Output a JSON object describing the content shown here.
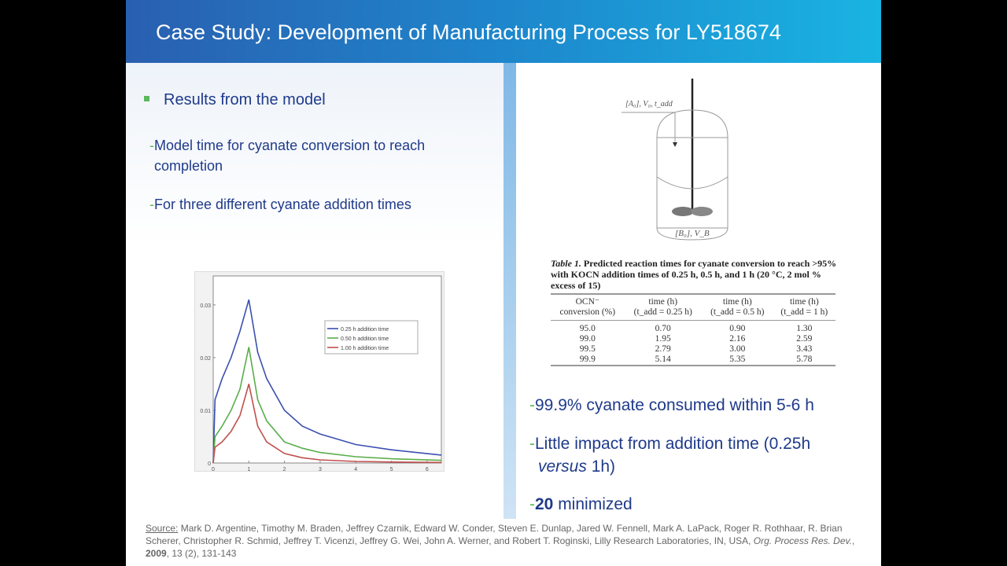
{
  "title": "Case Study: Development of Manufacturing Process for LY518674",
  "left": {
    "bullet": "Results from the model",
    "subs": [
      "Model time for cyanate conversion to reach completion",
      "For three different cyanate addition times"
    ]
  },
  "right": {
    "diagram": {
      "feed_label": "[A₀], V₀, t_add",
      "bottom_label": "[B₀], V_B"
    },
    "table": {
      "caption_bold": "Table 1.",
      "caption": "Predicted reaction times for cyanate conversion to reach >95% with KOCN addition times of 0.25 h, 0.5 h, and 1 h (20 °C, 2 mol % excess of 15)",
      "headers": [
        [
          "OCN⁻",
          "conversion (%)"
        ],
        [
          "time (h)",
          "(t_add = 0.25 h)"
        ],
        [
          "time (h)",
          "(t_add = 0.5 h)"
        ],
        [
          "time (h)",
          "(t_add = 1 h)"
        ]
      ],
      "rows": [
        [
          "95.0",
          "0.70",
          "0.90",
          "1.30"
        ],
        [
          "99.0",
          "1.95",
          "2.16",
          "2.59"
        ],
        [
          "99.5",
          "2.79",
          "3.00",
          "3.43"
        ],
        [
          "99.9",
          "5.14",
          "5.35",
          "5.78"
        ]
      ]
    },
    "subs": {
      "s1": "99.9% cyanate consumed within 5-6 h",
      "s2a": "Little impact from addition time (0.25h",
      "s2b_italic": "versus",
      "s2c": " 1h)",
      "s3_bold": "20",
      "s3": " minimized"
    }
  },
  "source": {
    "label": "Source:",
    "authors": " Mark D. Argentine, Timothy M. Braden, Jeffrey Czarnik, Edward W. Conder, Steven E. Dunlap, Jared W. Fennell, Mark A. LaPack, Roger R. Rothhaar, R. Brian Scherer, Christopher R. Schmid, Jeffrey T. Vicenzi, Jeffrey G. Wei, John A. Werner, and Robert T. Roginski, Lilly Research Laboratories, IN, USA, ",
    "journal": "Org. Process Res. Dev.",
    "comma": ", ",
    "year": "2009",
    "rest": ", 13 (2), 131-143"
  },
  "chart_data": {
    "type": "line",
    "title": "",
    "xlabel": "",
    "ylabel": "",
    "xlim": [
      0,
      6.4
    ],
    "ylim": [
      0,
      0.0355
    ],
    "xticks": [
      "0",
      "1",
      "2",
      "3",
      "4",
      "5",
      "6"
    ],
    "yticks": [
      "0",
      "0.01",
      "0.02",
      "0.03"
    ],
    "legend_position": "top-right",
    "x": [
      0,
      0.05,
      0.25,
      0.5,
      0.75,
      1,
      1.25,
      1.5,
      2,
      2.5,
      3,
      4,
      5,
      6.4
    ],
    "series": [
      {
        "name": "0.25 h addition time",
        "color": "#3b4fb0",
        "values": [
          0,
          0.012,
          0.016,
          0.02,
          0.025,
          0.031,
          0.021,
          0.016,
          0.01,
          0.007,
          0.0055,
          0.0035,
          0.0025,
          0.0015
        ]
      },
      {
        "name": "0.50 h addition time",
        "color": "#5aad4a",
        "values": [
          0,
          0.005,
          0.007,
          0.01,
          0.014,
          0.022,
          0.012,
          0.008,
          0.004,
          0.0028,
          0.002,
          0.0012,
          0.0008,
          0.0005
        ]
      },
      {
        "name": "1.00 h addition time",
        "color": "#c0504d",
        "values": [
          0,
          0.003,
          0.004,
          0.006,
          0.009,
          0.015,
          0.007,
          0.004,
          0.0018,
          0.001,
          0.0006,
          0.0003,
          0.0002,
          0.0001
        ]
      }
    ]
  }
}
